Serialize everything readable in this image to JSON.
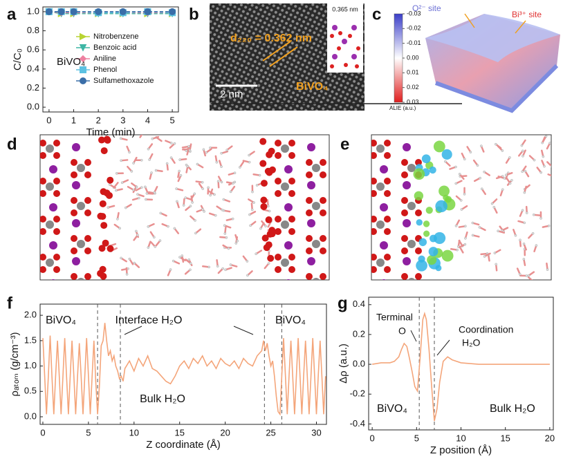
{
  "panel_labels": [
    "a",
    "b",
    "c",
    "d",
    "e",
    "f",
    "g"
  ],
  "panel_b": {
    "d_spacing": "d₂₂₀ = 0.362 nm",
    "inset_label": "0.365 nm",
    "material": "BiVO₄",
    "scale_bar": "2 nm"
  },
  "panel_c": {
    "colorbar_ticks": [
      "-0.03",
      "-0.02",
      "-0.01",
      "0.00",
      "0.01",
      "0.02",
      "0.03"
    ],
    "colorbar_label": "ALIE (a.u.)",
    "site_labels": [
      "O²⁻ site",
      "Bi³⁺ site"
    ]
  },
  "chart_data": [
    {
      "type": "line",
      "x_label": "Time (min)",
      "y_label": "C/C₀",
      "annotations": [
        "BiVO₄"
      ],
      "legend": "center right",
      "line_style": "dashed",
      "x": [
        0,
        0.5,
        1,
        2,
        3,
        4,
        5
      ],
      "xlim": [
        -0.25,
        5.25
      ],
      "xticks": [
        0,
        1,
        2,
        3,
        4,
        5
      ],
      "ylim": [
        -0.05,
        1.05
      ],
      "yticks": [
        {
          "value": 0,
          "label": "0.0"
        },
        0.2,
        0.4,
        0.6,
        0.8,
        {
          "value": 1,
          "label": "1.0"
        }
      ],
      "series": [
        {
          "name": "Nitrobenzene",
          "color": "#b8d432",
          "marker": "triangle-right",
          "values": [
            1,
            0.98,
            0.98,
            0.98,
            0.98,
            0.98,
            0.98
          ]
        },
        {
          "name": "Benzoic acid",
          "color": "#3db5a4",
          "marker": "triangle-down",
          "values": [
            1,
            0.98,
            0.98,
            0.98,
            0.98,
            0.98,
            0.98
          ]
        },
        {
          "name": "Aniline",
          "color": "#ee80a0",
          "marker": "diamond",
          "values": [
            1,
            0.99,
            0.99,
            0.99,
            0.99,
            0.99,
            0.99
          ]
        },
        {
          "name": "Phenol",
          "color": "#5cc2e2",
          "marker": "square",
          "values": [
            1,
            1,
            1,
            0.99,
            0.99,
            1,
            0.99
          ]
        },
        {
          "name": "Sulfamethoxazole",
          "color": "#3a6ea8",
          "marker": "circle",
          "values": [
            1,
            1,
            1,
            1,
            1,
            1,
            1
          ]
        }
      ]
    },
    {
      "type": "line",
      "x_label": "Z coordinate (Å)",
      "y_label": "ρₐₜₒₘ (g/cm⁻³)",
      "annotations": [
        "BiVO₄",
        "Interface H₂O",
        "Bulk H₂O",
        "BiVO₄"
      ],
      "vlines": [
        6.0,
        8.5,
        24.3,
        26.2
      ],
      "xlim": [
        -0.3,
        31.1
      ],
      "xticks": [
        0,
        5,
        10,
        15,
        20,
        25,
        30
      ],
      "ylim": [
        -0.15,
        2.22
      ],
      "yticks": [
        {
          "value": 0,
          "label": "0.0"
        },
        0.5,
        {
          "value": 1,
          "label": "1.0"
        },
        1.5,
        {
          "value": 2,
          "label": "2.0"
        }
      ],
      "x": [
        0,
        0.2,
        0.4,
        0.6,
        0.8,
        1,
        1.2,
        1.4,
        1.6,
        1.8,
        2,
        2.2,
        2.4,
        2.6,
        2.8,
        3,
        3.2,
        3.4,
        3.6,
        3.8,
        4,
        4.2,
        4.4,
        4.6,
        4.8,
        5,
        5.2,
        5.4,
        5.6,
        5.8,
        6,
        6.2,
        6.4,
        6.6,
        6.8,
        7,
        7.2,
        7.4,
        7.6,
        7.8,
        8,
        8.2,
        8.4,
        8.6,
        8.8,
        9,
        9.5,
        10,
        10.5,
        11,
        11.5,
        12,
        12.5,
        13,
        13.5,
        14,
        14.5,
        15,
        15.5,
        16,
        16.5,
        17,
        17.5,
        18,
        18.5,
        19,
        19.5,
        20,
        20.5,
        21,
        21.5,
        22,
        22.5,
        23,
        23.5,
        24,
        24.2,
        24.4,
        24.6,
        24.8,
        25,
        25.2,
        25.4,
        25.6,
        25.8,
        26,
        26.2,
        26.4,
        26.6,
        26.8,
        27,
        27.2,
        27.4,
        27.6,
        27.8,
        28,
        28.2,
        28.4,
        28.6,
        28.8,
        29,
        29.2,
        29.4,
        29.6,
        29.8,
        30,
        30.2,
        30.4,
        30.6,
        30.8,
        31
      ],
      "series": [
        {
          "name": "ρ",
          "color": "#f4a57a",
          "values": [
            1.55,
            0.8,
            0.05,
            0.8,
            1.6,
            0.8,
            0.05,
            0.8,
            1.5,
            0.8,
            0.05,
            0.8,
            1.55,
            0.8,
            0.05,
            0.8,
            1.5,
            0.8,
            0.05,
            0.8,
            1.45,
            0.8,
            0.05,
            0.8,
            1.55,
            0.8,
            0.05,
            0.8,
            1.5,
            0.7,
            0.05,
            0.6,
            1.4,
            1.5,
            1.85,
            1.5,
            1.2,
            1.3,
            1.1,
            1.2,
            1.0,
            0.9,
            0.75,
            0.8,
            0.7,
            0.95,
            1.1,
            0.9,
            1.15,
            1.0,
            1.2,
            0.95,
            0.9,
            0.8,
            0.7,
            0.65,
            0.8,
            1.0,
            1.1,
            0.95,
            1.15,
            1.05,
            1.2,
            1.0,
            1.1,
            0.95,
            1.15,
            1.05,
            1.0,
            1.1,
            0.95,
            1.15,
            1.05,
            1.0,
            1.2,
            1.3,
            1.5,
            1.3,
            1.45,
            1.2,
            1.0,
            1.1,
            0.8,
            0.4,
            0.1,
            0.05,
            0.8,
            1.55,
            0.8,
            0.05,
            0.8,
            1.5,
            0.8,
            0.05,
            0.8,
            1.55,
            0.8,
            0.05,
            0.8,
            1.5,
            0.8,
            0.05,
            0.8,
            1.55,
            0.8,
            0.05,
            0.8,
            1.5,
            0.8,
            0.05,
            0.8
          ]
        }
      ]
    },
    {
      "type": "line",
      "x_label": "Z position (Å)",
      "y_label": "Δρ (a.u.)",
      "annotations": [
        "Terminal",
        "O",
        "Coordination",
        "H₂O",
        "BiVO₄",
        "Bulk H₂O"
      ],
      "vlines": [
        5.3,
        7.0
      ],
      "xlim": [
        -0.4,
        20.4
      ],
      "xticks": [
        0,
        5,
        10,
        15,
        20
      ],
      "ylim": [
        -0.44,
        0.45
      ],
      "yticks": [
        -0.4,
        -0.2,
        {
          "value": 0,
          "label": "0.0"
        },
        0.2,
        0.4
      ],
      "x": [
        0,
        1,
        2,
        2.5,
        3,
        3.3,
        3.6,
        3.9,
        4.2,
        4.5,
        4.8,
        5.1,
        5.4,
        5.7,
        5.9,
        6.1,
        6.4,
        6.7,
        7.0,
        7.3,
        7.6,
        8.0,
        8.5,
        9,
        10,
        12,
        14,
        16,
        18,
        20
      ],
      "series": [
        {
          "name": "Δρ",
          "color": "#f4a57a",
          "values": [
            0,
            0.01,
            0.01,
            0.02,
            0.05,
            0.1,
            0.14,
            0.12,
            0.04,
            -0.05,
            -0.15,
            -0.18,
            0.05,
            0.3,
            0.34,
            0.3,
            0.1,
            -0.15,
            -0.38,
            -0.3,
            -0.12,
            0.02,
            0.05,
            0.03,
            0.01,
            0,
            0,
            0,
            0,
            0
          ]
        }
      ]
    }
  ]
}
